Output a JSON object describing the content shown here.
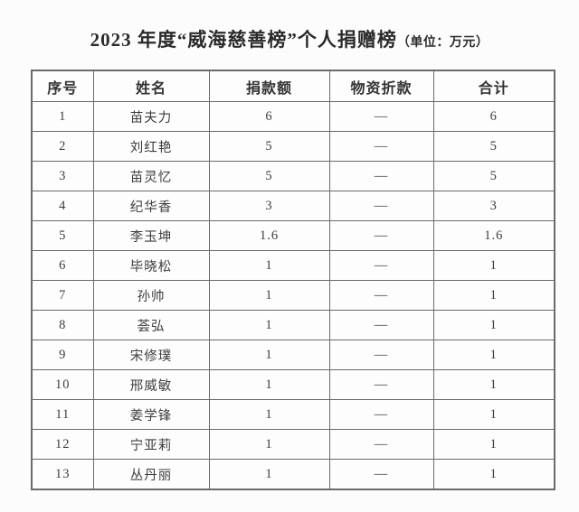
{
  "title": {
    "main": "2023 年度“威海慈善榜”个人捐赠榜",
    "unit": "（单位：万元）"
  },
  "table": {
    "headers": [
      "序号",
      "姓名",
      "捐款额",
      "物资折款",
      "合计"
    ],
    "column_keys": [
      "index",
      "name",
      "donation-amount",
      "material-discount",
      "total"
    ],
    "rows": [
      [
        "1",
        "苗夫力",
        "6",
        "—",
        "6"
      ],
      [
        "2",
        "刘红艳",
        "5",
        "—",
        "5"
      ],
      [
        "3",
        "苗灵忆",
        "5",
        "—",
        "5"
      ],
      [
        "4",
        "纪华香",
        "3",
        "—",
        "3"
      ],
      [
        "5",
        "李玉坤",
        "1.6",
        "—",
        "1.6"
      ],
      [
        "6",
        "毕晓松",
        "1",
        "—",
        "1"
      ],
      [
        "7",
        "孙帅",
        "1",
        "—",
        "1"
      ],
      [
        "8",
        "荟弘",
        "1",
        "—",
        "1"
      ],
      [
        "9",
        "宋修璞",
        "1",
        "—",
        "1"
      ],
      [
        "10",
        "邢威敏",
        "1",
        "—",
        "1"
      ],
      [
        "11",
        "姜学锋",
        "1",
        "—",
        "1"
      ],
      [
        "12",
        "宁亚莉",
        "1",
        "—",
        "1"
      ],
      [
        "13",
        "丛丹丽",
        "1",
        "—",
        "1"
      ]
    ]
  },
  "colors": {
    "background": "#fcfcfc",
    "table_border": "#6a6a6a",
    "title_text": "#2b2b2b",
    "body_text": "#3d3d3d"
  }
}
